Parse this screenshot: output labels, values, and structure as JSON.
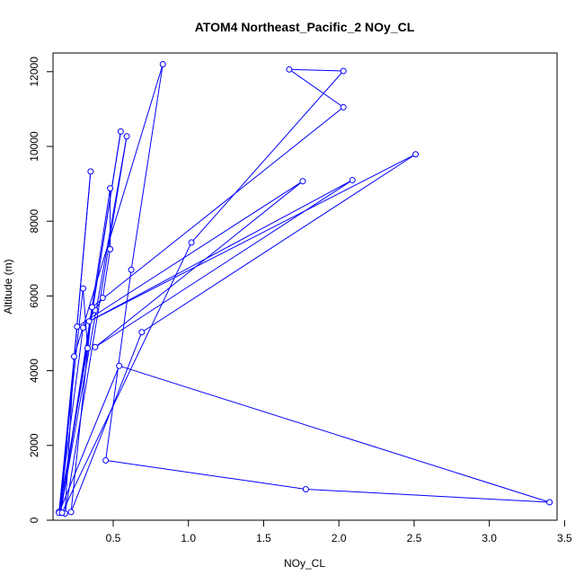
{
  "chart_data": {
    "type": "line",
    "title": "ATOM4 Northeast_Pacific_2 NOy_CL",
    "xlabel": "NOy_CL",
    "ylabel": "Altitude (m)",
    "xlim": [
      0.1,
      3.45
    ],
    "ylim": [
      0,
      12500
    ],
    "xticks": [
      0.5,
      1.0,
      1.5,
      2.0,
      2.5,
      3.0,
      3.5
    ],
    "xtick_labels": [
      "0.5",
      "1.0",
      "1.5",
      "2.0",
      "2.5",
      "3.0",
      "3.5"
    ],
    "yticks": [
      0,
      2000,
      4000,
      6000,
      8000,
      10000,
      12000
    ],
    "ytick_labels": [
      "0",
      "2000",
      "4000",
      "6000",
      "8000",
      "10000",
      "12000"
    ],
    "grid": false,
    "markers": "open-circle",
    "series_color": "#0000ff",
    "series": [
      {
        "points": [
          {
            "x": 0.14,
            "y": 220
          },
          {
            "x": 0.3,
            "y": 6200
          },
          {
            "x": 0.33,
            "y": 4600
          },
          {
            "x": 0.14,
            "y": 220
          },
          {
            "x": 0.3,
            "y": 5150
          },
          {
            "x": 0.38,
            "y": 5620
          },
          {
            "x": 0.43,
            "y": 5950
          },
          {
            "x": 0.48,
            "y": 7250
          },
          {
            "x": 0.48,
            "y": 8880
          },
          {
            "x": 0.15,
            "y": 200
          },
          {
            "x": 0.35,
            "y": 9330
          },
          {
            "x": 0.15,
            "y": 200
          },
          {
            "x": 0.55,
            "y": 10400
          },
          {
            "x": 0.15,
            "y": 200
          },
          {
            "x": 0.59,
            "y": 10270
          },
          {
            "x": 0.18,
            "y": 180
          },
          {
            "x": 0.24,
            "y": 4380
          },
          {
            "x": 0.83,
            "y": 12200
          },
          {
            "x": 0.62,
            "y": 6700
          },
          {
            "x": 0.45,
            "y": 1600
          },
          {
            "x": 1.78,
            "y": 830
          },
          {
            "x": 3.4,
            "y": 480
          },
          {
            "x": 0.54,
            "y": 4130
          },
          {
            "x": 0.14,
            "y": 200
          },
          {
            "x": 0.26,
            "y": 5180
          },
          {
            "x": 1.76,
            "y": 9070
          },
          {
            "x": 0.38,
            "y": 4630
          },
          {
            "x": 2.09,
            "y": 9100
          },
          {
            "x": 0.34,
            "y": 5320
          },
          {
            "x": 2.51,
            "y": 9790
          },
          {
            "x": 0.69,
            "y": 5030
          },
          {
            "x": 0.22,
            "y": 220
          },
          {
            "x": 0.36,
            "y": 5700
          },
          {
            "x": 2.03,
            "y": 11050
          },
          {
            "x": 1.67,
            "y": 12060
          },
          {
            "x": 2.03,
            "y": 12020
          },
          {
            "x": 1.02,
            "y": 7430
          },
          {
            "x": 0.16,
            "y": 200
          }
        ]
      }
    ]
  }
}
